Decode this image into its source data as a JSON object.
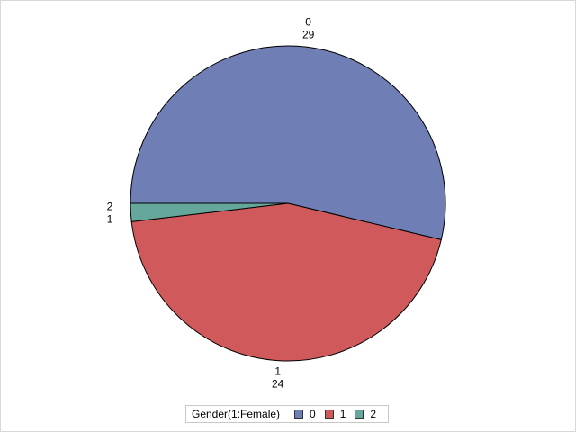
{
  "chart_data": {
    "type": "pie",
    "legend_title": "Gender(1:Female)",
    "legend_position": "bottom",
    "slices": [
      {
        "label": "0",
        "value": 29,
        "color": "#6f7eb4"
      },
      {
        "label": "1",
        "value": 24,
        "color": "#d05a5b"
      },
      {
        "label": "2",
        "value": 1,
        "color": "#66a79c"
      }
    ]
  }
}
